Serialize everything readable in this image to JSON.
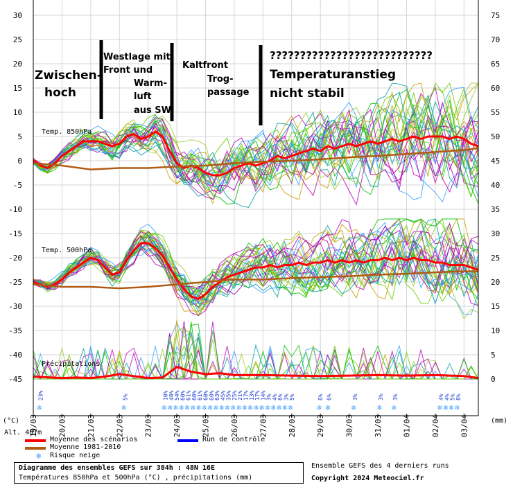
{
  "chart_data": {
    "type": "line",
    "left_axis": {
      "label": "(°C)",
      "ticks": [
        30,
        25,
        20,
        15,
        10,
        5,
        0,
        -5,
        -10,
        -15,
        -20,
        -25,
        -30,
        -35,
        -40,
        -45
      ],
      "range": [
        -45,
        30
      ]
    },
    "right_axis": {
      "label": "(mm)",
      "ticks": [
        75,
        70,
        65,
        60,
        55,
        50,
        45,
        40,
        35,
        30,
        25,
        20,
        15,
        10,
        5,
        0
      ],
      "range": [
        0,
        75
      ]
    },
    "x_ticks": [
      "19/03",
      "20/03",
      "21/03",
      "22/03",
      "23/03",
      "24/03",
      "25/03",
      "26/03",
      "27/03",
      "28/03",
      "29/03",
      "30/03",
      "31/03",
      "01/04",
      "02/04",
      "03/04"
    ],
    "altitude_label": "Alt. 487m",
    "panel_labels": {
      "t850": "Temp. 850hPa",
      "t500": "Temp. 500hPa",
      "precip": "Précipitations"
    },
    "series": [
      {
        "name": "Moyenne des scénarios (850hPa)",
        "color": "#ff0000",
        "x": [
          0,
          0.25,
          0.5,
          0.75,
          1,
          1.25,
          1.5,
          1.75,
          2,
          2.25,
          2.5,
          2.75,
          3,
          3.25,
          3.5,
          3.75,
          4,
          4.25,
          4.5,
          4.75,
          5,
          5.25,
          5.5,
          5.75,
          6,
          6.25,
          6.5,
          6.75,
          7,
          7.25,
          7.5,
          7.75,
          8,
          8.25,
          8.5,
          8.75,
          9,
          9.25,
          9.5,
          9.75,
          10,
          10.25,
          10.5,
          10.75,
          11,
          11.25,
          11.5,
          11.75,
          12,
          12.25,
          12.5,
          12.75,
          13,
          13.25,
          13.5,
          13.75,
          14,
          14.25,
          14.5,
          14.75,
          15,
          15.25,
          15.5
        ],
        "values": [
          0,
          -1,
          -1.5,
          -0.5,
          1,
          2,
          3,
          4,
          4,
          4,
          3.5,
          3,
          3.5,
          5,
          5.5,
          4.5,
          5,
          6,
          5,
          2,
          -0.5,
          -1.5,
          -1,
          -1.5,
          -2.5,
          -3,
          -3,
          -2.5,
          -1.5,
          -1,
          -0.5,
          -1,
          -0.5,
          0,
          1,
          0.5,
          1,
          1.5,
          2,
          2.5,
          2,
          3,
          2.5,
          3,
          3.5,
          3,
          3.5,
          4,
          3.5,
          4,
          4.5,
          4,
          4.5,
          5,
          4.5,
          5,
          5,
          5,
          4.5,
          5,
          4.5,
          3.5,
          3
        ]
      },
      {
        "name": "Moyenne 1981-2010 (850hPa)",
        "color": "#b25b15",
        "x": [
          0,
          1,
          2,
          3,
          4,
          5,
          6,
          7,
          8,
          9,
          10,
          11,
          12,
          13,
          14,
          15,
          15.5
        ],
        "values": [
          -0.5,
          -1,
          -1.8,
          -1.5,
          -1.5,
          -1.2,
          -1,
          -0.5,
          -0.2,
          0,
          0.3,
          0.7,
          1,
          1.4,
          1.8,
          2.2,
          2.6
        ]
      },
      {
        "name": "Moyenne des scénarios (500hPa)",
        "color": "#ff0000",
        "x": [
          0,
          0.25,
          0.5,
          0.75,
          1,
          1.25,
          1.5,
          1.75,
          2,
          2.25,
          2.5,
          2.75,
          3,
          3.25,
          3.5,
          3.75,
          4,
          4.25,
          4.5,
          4.75,
          5,
          5.25,
          5.5,
          5.75,
          6,
          6.25,
          6.5,
          6.75,
          7,
          7.25,
          7.5,
          7.75,
          8,
          8.25,
          8.5,
          8.75,
          9,
          9.25,
          9.5,
          9.75,
          10,
          10.25,
          10.5,
          10.75,
          11,
          11.25,
          11.5,
          11.75,
          12,
          12.25,
          12.5,
          12.75,
          13,
          13.25,
          13.5,
          13.75,
          14,
          14.25,
          14.5,
          14.75,
          15,
          15.25,
          15.5
        ],
        "values": [
          -25,
          -25.5,
          -26,
          -25.5,
          -24.5,
          -23,
          -22,
          -21,
          -20,
          -20.5,
          -22,
          -23.5,
          -23,
          -20.5,
          -18.5,
          -17,
          -17,
          -18,
          -19.5,
          -22,
          -24.5,
          -26.5,
          -28,
          -28.5,
          -27.5,
          -26,
          -25,
          -24,
          -23.5,
          -23,
          -22.5,
          -22,
          -22,
          -21.5,
          -22,
          -21.5,
          -21.5,
          -21,
          -21.5,
          -21,
          -21,
          -20.5,
          -21,
          -20.5,
          -21,
          -20.5,
          -21,
          -20.5,
          -20.5,
          -20,
          -20.5,
          -20,
          -20.5,
          -20,
          -20.5,
          -20.5,
          -21,
          -21,
          -21.5,
          -21.5,
          -21.5,
          -22,
          -22.5
        ]
      },
      {
        "name": "Moyenne 1981-2010 (500hPa)",
        "color": "#b25b15",
        "x": [
          0,
          1,
          2,
          3,
          4,
          5,
          6,
          7,
          8,
          9,
          10,
          11,
          12,
          13,
          14,
          15,
          15.5
        ],
        "values": [
          -25.5,
          -26,
          -26,
          -26.3,
          -26,
          -25.5,
          -25,
          -24.5,
          -24.5,
          -24.2,
          -24,
          -23.8,
          -23.5,
          -23.3,
          -23,
          -22.8,
          -22.8
        ]
      },
      {
        "name": "Moyenne des scénarios (précipitations, mm)",
        "color": "#ff0000",
        "x": [
          0,
          1,
          1.5,
          2,
          2.5,
          3,
          4,
          4.5,
          5,
          5.5,
          6,
          6.5,
          7,
          8,
          9,
          10,
          11,
          12,
          13,
          14,
          15,
          15.5
        ],
        "values": [
          0.5,
          0.2,
          0.3,
          0.2,
          0.5,
          1,
          0.2,
          0.3,
          2.5,
          1.5,
          1,
          1.2,
          0.8,
          0.8,
          0.7,
          0.6,
          0.7,
          0.8,
          0.7,
          0.8,
          0.6,
          0.2
        ]
      }
    ],
    "snow_risk": [
      {
        "x": 0.25,
        "label": "23%"
      },
      {
        "x": 3.2,
        "label": "5%"
      },
      {
        "x": 4.6,
        "label": "10%"
      },
      {
        "x": 4.8,
        "label": "40%"
      },
      {
        "x": 5.0,
        "label": "54%"
      },
      {
        "x": 5.2,
        "label": "60%"
      },
      {
        "x": 5.4,
        "label": "61%"
      },
      {
        "x": 5.6,
        "label": "60%"
      },
      {
        "x": 5.8,
        "label": "61%"
      },
      {
        "x": 6.0,
        "label": "60%"
      },
      {
        "x": 6.2,
        "label": "60%"
      },
      {
        "x": 6.4,
        "label": "63%"
      },
      {
        "x": 6.6,
        "label": "45%"
      },
      {
        "x": 6.8,
        "label": "35%"
      },
      {
        "x": 7.0,
        "label": "25%"
      },
      {
        "x": 7.2,
        "label": "21%"
      },
      {
        "x": 7.4,
        "label": "17%"
      },
      {
        "x": 7.6,
        "label": "13%"
      },
      {
        "x": 7.8,
        "label": "17%"
      },
      {
        "x": 8.0,
        "label": "14%"
      },
      {
        "x": 8.2,
        "label": "3%"
      },
      {
        "x": 8.4,
        "label": "4%"
      },
      {
        "x": 8.6,
        "label": "6%"
      },
      {
        "x": 8.8,
        "label": "3%"
      },
      {
        "x": 9.0,
        "label": "5%"
      },
      {
        "x": 10.0,
        "label": "6%"
      },
      {
        "x": 10.3,
        "label": "6%"
      },
      {
        "x": 11.2,
        "label": "3%"
      },
      {
        "x": 12.1,
        "label": "3%"
      },
      {
        "x": 12.6,
        "label": "3%"
      },
      {
        "x": 14.2,
        "label": "4%"
      },
      {
        "x": 14.4,
        "label": "4%"
      },
      {
        "x": 14.6,
        "label": "5%"
      },
      {
        "x": 14.8,
        "label": "8%"
      }
    ]
  },
  "annotations": {
    "zwischenhoch": [
      "Zwischen-",
      "hoch"
    ],
    "westlage": [
      "Westlage mit",
      "Front und"
    ],
    "warmluft": [
      "Warm-",
      "luft",
      "aus SW"
    ],
    "kaltfront": "Kaltfront",
    "trog": [
      "Trog-",
      "passage"
    ],
    "questions": "???????????????????????????",
    "temperaturanstieg": [
      "Temperaturanstieg",
      "nicht stabil"
    ]
  },
  "legend": {
    "items": [
      {
        "label": "Moyenne des scénarios",
        "color": "#ff0000"
      },
      {
        "label": "Run de contrôle",
        "color": "#0000ff"
      },
      {
        "label": "Moyenne 1981-2010",
        "color": "#b25b15"
      },
      {
        "label": "Risque neige",
        "color": "#4aa3ff"
      }
    ]
  },
  "footer": {
    "title": "Diagramme des ensembles GEFS sur 384h : 48N 16E",
    "subtitle": "Températures 850hPa et 500hPa (°C) , précipitations (mm)",
    "ensemble": "Ensemble GEFS des 4 derniers runs",
    "copyright": "Copyright 2024 Meteociel.fr"
  }
}
